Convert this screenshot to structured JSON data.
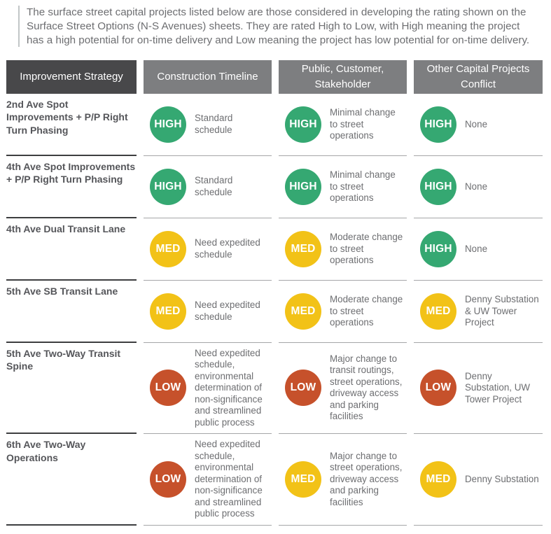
{
  "intro": {
    "text": "The surface street capital projects listed below are those considered in developing the rating shown on the Surface Street Options (N-S Avenues) sheets. They are rated High to Low, with High meaning the project has a high potential for on-time delivery and Low meaning the project has low potential for on-time delivery."
  },
  "table": {
    "columns": [
      {
        "label": "Improvement Strategy"
      },
      {
        "label": "Construction Timeline"
      },
      {
        "label": "Public, Customer, Stakeholder"
      },
      {
        "label": "Other Capital Projects Conflict"
      }
    ],
    "rating_colors": {
      "HIGH": "#35a872",
      "MED": "#f2c217",
      "LOW": "#c6512b"
    },
    "rows": [
      {
        "strategy": "2nd Ave Spot Improvements + P/P Right Turn Phasing",
        "cells": [
          {
            "rating": "HIGH",
            "note": "Standard schedule"
          },
          {
            "rating": "HIGH",
            "note": "Minimal change to street operations"
          },
          {
            "rating": "HIGH",
            "note": "None"
          }
        ]
      },
      {
        "strategy": "4th Ave Spot Improvements + P/P Right Turn Phasing",
        "cells": [
          {
            "rating": "HIGH",
            "note": "Standard schedule"
          },
          {
            "rating": "HIGH",
            "note": "Minimal change to street operations"
          },
          {
            "rating": "HIGH",
            "note": "None"
          }
        ]
      },
      {
        "strategy": "4th Ave Dual Transit Lane",
        "cells": [
          {
            "rating": "MED",
            "note": "Need expedited schedule"
          },
          {
            "rating": "MED",
            "note": "Moderate change to street operations"
          },
          {
            "rating": "HIGH",
            "note": "None"
          }
        ]
      },
      {
        "strategy": "5th Ave SB Transit Lane",
        "cells": [
          {
            "rating": "MED",
            "note": "Need expedited schedule"
          },
          {
            "rating": "MED",
            "note": "Moderate change to street operations"
          },
          {
            "rating": "MED",
            "note": "Denny Substation & UW Tower Project"
          }
        ]
      },
      {
        "strategy": "5th Ave Two-Way Transit Spine",
        "cells": [
          {
            "rating": "LOW",
            "note": "Need expedited schedule, environmental determination of non-significance and streamlined public process"
          },
          {
            "rating": "LOW",
            "note": "Major change to transit routings, street operations, driveway access and parking facilities"
          },
          {
            "rating": "LOW",
            "note": "Denny Substation, UW Tower Project"
          }
        ]
      },
      {
        "strategy": "6th Ave Two-Way Operations",
        "cells": [
          {
            "rating": "LOW",
            "note": "Need expedited schedule, environmental determination of non-significance and streamlined public process"
          },
          {
            "rating": "MED",
            "note": "Major change to street operations, driveway access and parking facilities"
          },
          {
            "rating": "MED",
            "note": "Denny Substation"
          }
        ]
      }
    ]
  }
}
